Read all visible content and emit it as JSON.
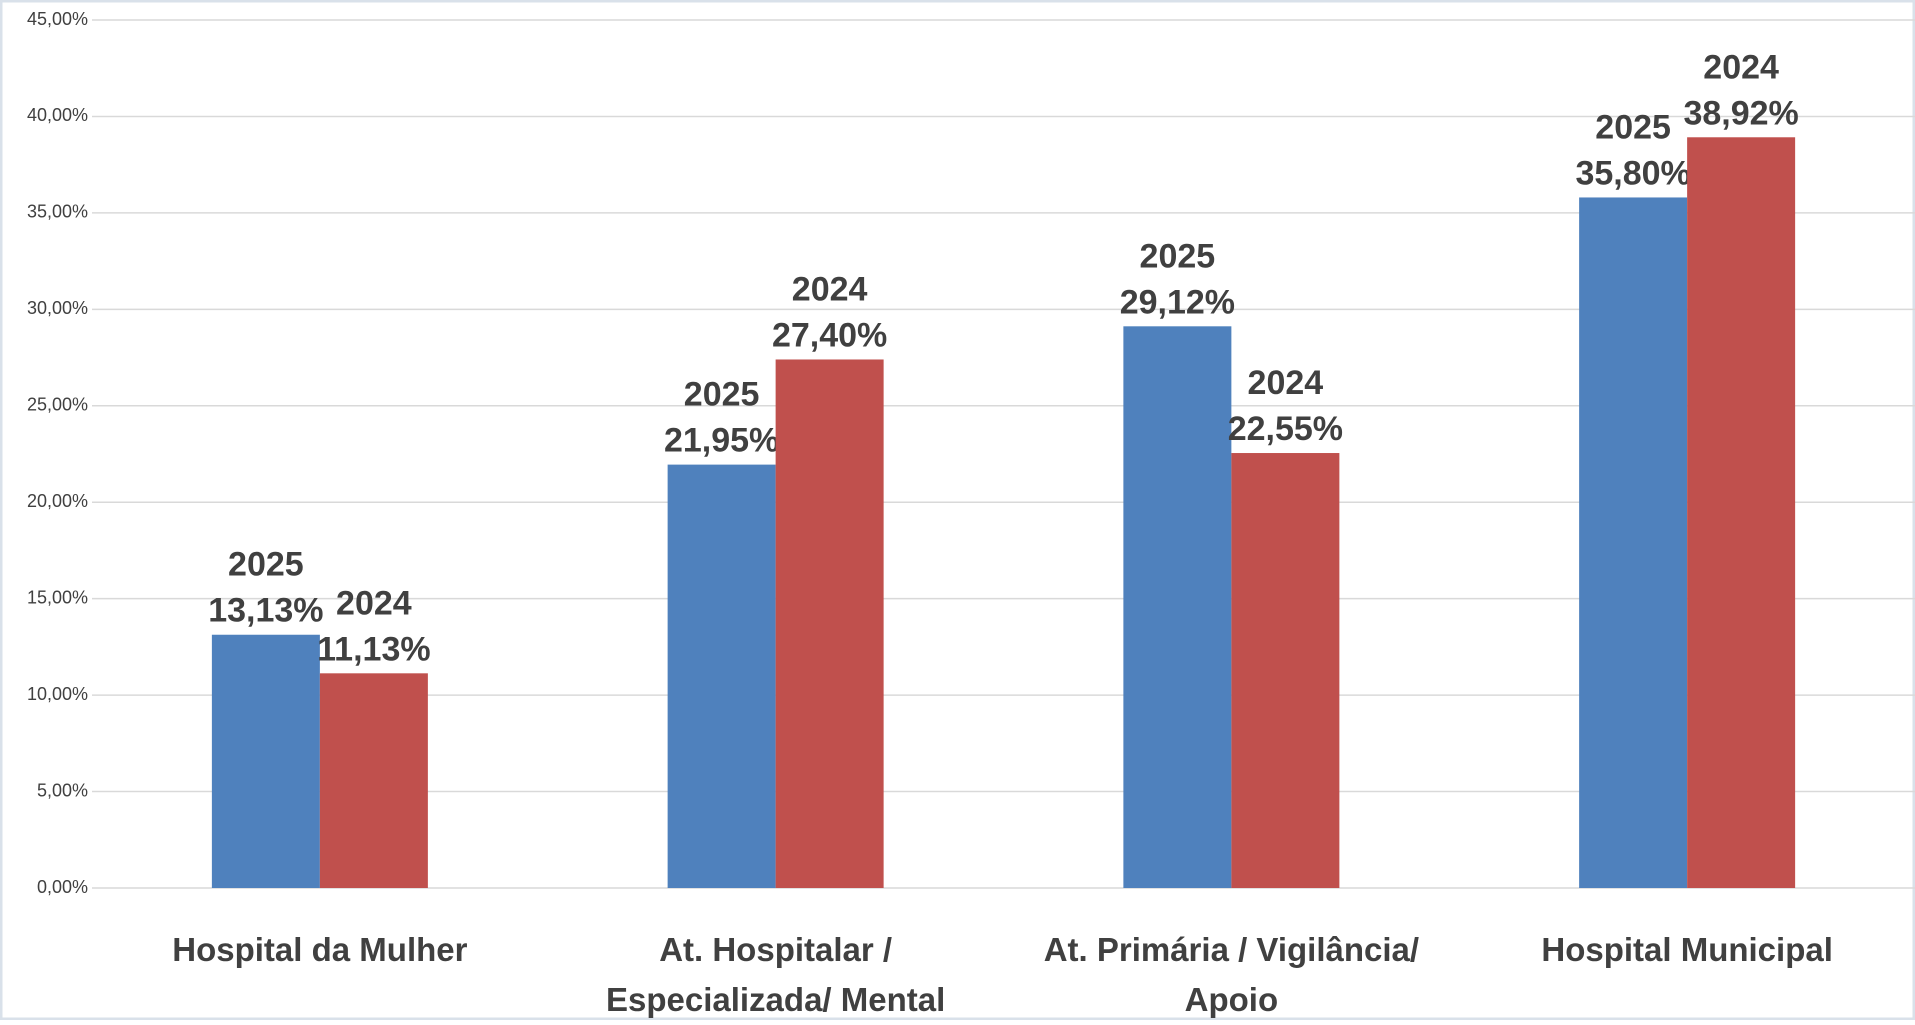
{
  "chart_data": {
    "type": "bar",
    "categories": [
      "Hospital da Mulher",
      "At. Hospitalar / Especializada/ Mental",
      "At. Primária / Vigilância/ Apoio",
      "Hospital Municipal"
    ],
    "series": [
      {
        "name": "2025",
        "color": "#4f81bd",
        "values": [
          13.13,
          21.95,
          29.12,
          35.8
        ],
        "value_labels": [
          "13,13%",
          "21,95%",
          "29,12%",
          "35,80%"
        ]
      },
      {
        "name": "2024",
        "color": "#c0504d",
        "values": [
          11.13,
          27.4,
          22.55,
          38.92
        ],
        "value_labels": [
          "11,13%",
          "27,40%",
          "22,55%",
          "38,92%"
        ]
      }
    ],
    "ylim": [
      0,
      45
    ],
    "yticks": [
      {
        "value": 0,
        "label": "0,00%"
      },
      {
        "value": 5,
        "label": "5,00%"
      },
      {
        "value": 10,
        "label": "10,00%"
      },
      {
        "value": 15,
        "label": "15,00%"
      },
      {
        "value": 20,
        "label": "20,00%"
      },
      {
        "value": 25,
        "label": "25,00%"
      },
      {
        "value": 30,
        "label": "30,00%"
      },
      {
        "value": 35,
        "label": "35,00%"
      },
      {
        "value": 40,
        "label": "40,00%"
      },
      {
        "value": 45,
        "label": "45,00%"
      }
    ],
    "grid": true
  }
}
